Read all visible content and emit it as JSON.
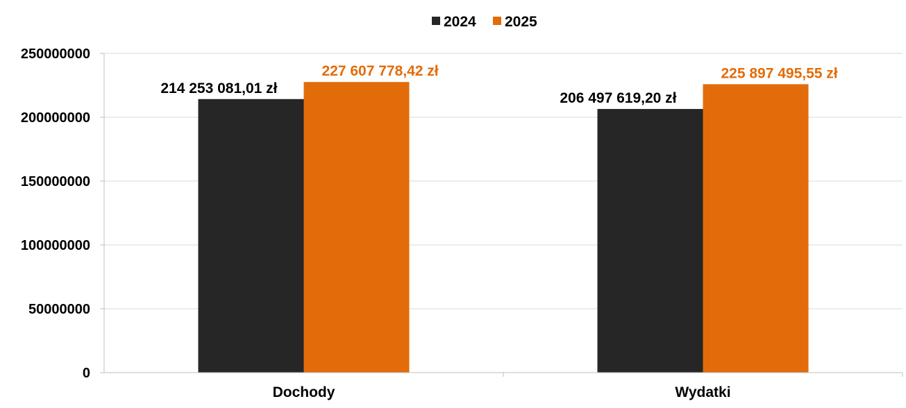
{
  "chart_data": {
    "type": "bar",
    "categories": [
      "Dochody",
      "Wydatki"
    ],
    "series": [
      {
        "name": "2024",
        "color": "#262626",
        "values": [
          214253081.01,
          206497619.2
        ],
        "labels": [
          "214 253 081,01 zł",
          "206 497 619,20 zł"
        ]
      },
      {
        "name": "2025",
        "color": "#E36C0A",
        "values": [
          227607778.42,
          225897495.55
        ],
        "labels": [
          "227 607 778,42 zł",
          "225 897 495,55 zł"
        ]
      }
    ],
    "ylim": [
      0,
      250000000
    ],
    "yticks": [
      0,
      50000000,
      100000000,
      150000000,
      200000000,
      250000000
    ],
    "ytick_labels": [
      "0",
      "50000000",
      "100000000",
      "150000000",
      "200000000",
      "250000000"
    ],
    "grid": true,
    "legend_position": "top-center",
    "title": "",
    "xlabel": "",
    "ylabel": ""
  }
}
